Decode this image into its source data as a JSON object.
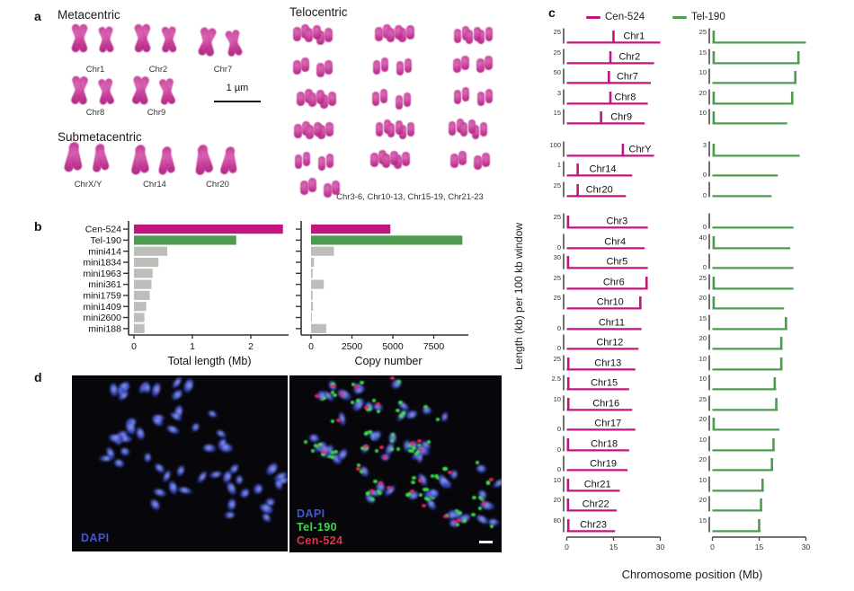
{
  "figure": {
    "panel_letters": {
      "a": "a",
      "b": "b",
      "c": "c",
      "d": "d"
    },
    "colors": {
      "cen": "#C2157E",
      "tel": "#4E9B50",
      "gray": "#BDBDB9",
      "axis": "#333333",
      "dapi_text": "#4355cf",
      "tel_text": "#3fd84a",
      "cen_text": "#e7333d",
      "chromo": "#bf2f8f",
      "dapi_blob": "#3a49c0"
    },
    "panel_a": {
      "label": "a",
      "met_title": "Metacentric",
      "met_row1": [
        "Chr1",
        "Chr2",
        "Chr7"
      ],
      "met_row2": [
        "Chr8",
        "Chr9"
      ],
      "scale_label": "1 µm",
      "sub_title": "Submetacentric",
      "sub_row": [
        "ChrX/Y",
        "Chr14",
        "Chr20"
      ],
      "tel_title": "Telocentric",
      "tel_caption": "Chr3-6, Chr10-13, Chr15-19, Chr21-23"
    },
    "panel_b": {
      "label": "b"
    },
    "panel_c": {
      "label": "c"
    },
    "panel_d": {
      "label": "d",
      "left_labels": [
        "DAPI"
      ],
      "right_labels": [
        "DAPI",
        "Tel-190",
        "Cen-524"
      ]
    }
  },
  "chart_data": [
    {
      "type": "bar",
      "orientation": "horizontal",
      "categories": [
        "Cen-524",
        "Tel-190",
        "mini414",
        "mini1834",
        "mini1963",
        "mini361",
        "mini1759",
        "mini1409",
        "mini2600",
        "mini188"
      ],
      "values": [
        2.55,
        1.75,
        0.57,
        0.42,
        0.32,
        0.3,
        0.27,
        0.21,
        0.18,
        0.18
      ],
      "xlabel": "Total length (Mb)",
      "xticks": [
        0,
        1,
        2
      ],
      "xlim": [
        0,
        2.6
      ],
      "grid": false
    },
    {
      "type": "bar",
      "orientation": "horizontal",
      "categories": [
        "Cen-524",
        "Tel-190",
        "mini414",
        "mini1834",
        "mini1963",
        "mini361",
        "mini1759",
        "mini1409",
        "mini2600",
        "mini188"
      ],
      "values": [
        4850,
        9250,
        1400,
        180,
        100,
        780,
        100,
        120,
        50,
        930
      ],
      "xlabel": "Copy number",
      "xticks": [
        0,
        2500,
        5000,
        7500
      ],
      "xlim": [
        0,
        9600
      ],
      "grid": false
    },
    {
      "type": "line",
      "title": "Cen-524 and Tel-190 density per chromosome",
      "legend": [
        {
          "label": "Cen-524",
          "color": "#C2157E"
        },
        {
          "label": "Tel-190",
          "color": "#4E9B50"
        }
      ],
      "xlabel": "Chromosome position (Mb)",
      "ylabel": "Length (kb) per 100 kb window",
      "xticks": [
        0,
        15,
        30
      ],
      "xlim": [
        0,
        30
      ],
      "rows": [
        {
          "chr": "Chr1",
          "cen": {
            "ymax": "25",
            "len": 30,
            "spikes": [
              15
            ],
            "lf": 0.72
          },
          "tel": {
            "ymax": "25",
            "len": 30,
            "spikes": [
              0.4
            ]
          }
        },
        {
          "chr": "Chr2",
          "cen": {
            "ymax": "25",
            "len": 28,
            "spikes": [
              14
            ],
            "lf": 0.72
          },
          "tel": {
            "ymax": "15",
            "len": 28,
            "spikes": [
              0.4,
              27.6
            ]
          }
        },
        {
          "chr": "Chr7",
          "cen": {
            "ymax": "50",
            "len": 27,
            "spikes": [
              13.5
            ],
            "lf": 0.72
          },
          "tel": {
            "ymax": "10",
            "len": 27,
            "spikes": [
              26.6
            ]
          }
        },
        {
          "chr": "Chr8",
          "cen": {
            "ymax": "3",
            "len": 26,
            "spikes": [
              14
            ],
            "lf": 0.72
          },
          "tel": {
            "ymax": "20",
            "len": 26,
            "spikes": [
              0.4,
              25.6
            ]
          }
        },
        {
          "chr": "Chr9",
          "cen": {
            "ymax": "15",
            "len": 25,
            "spikes": [
              11
            ],
            "lf": 0.7
          },
          "tel": {
            "ymax": "10",
            "len": 24,
            "spikes": [
              0.4
            ]
          }
        },
        {
          "chr": "ChrY",
          "gap": true,
          "cen": {
            "ymax": "100",
            "len": 28,
            "spikes": [
              18
            ],
            "lf": 0.84
          },
          "tel": {
            "ymax": "3",
            "len": 28,
            "spikes": [
              0.4
            ]
          }
        },
        {
          "chr": "Chr14",
          "cen": {
            "ymax": "1",
            "len": 21,
            "spikes": [
              3.5
            ],
            "lf": 0.55
          },
          "tel": {
            "ymax": "0",
            "len": 21,
            "spikes": []
          }
        },
        {
          "chr": "Chr20",
          "cen": {
            "ymax": "25",
            "len": 19,
            "spikes": [
              3.5
            ],
            "lf": 0.55
          },
          "tel": {
            "ymax": "0",
            "len": 19,
            "spikes": []
          }
        },
        {
          "chr": "Chr3",
          "gap": true,
          "cen": {
            "ymax": "25",
            "len": 26,
            "spikes": [
              0.4
            ],
            "lf": 0.62
          },
          "tel": {
            "ymax": "0",
            "len": 26,
            "spikes": []
          }
        },
        {
          "chr": "Chr4",
          "cen": {
            "ymax": "0",
            "len": 25,
            "spikes": [],
            "lf": 0.62
          },
          "tel": {
            "ymax": "40",
            "len": 25,
            "spikes": [
              0.4
            ]
          }
        },
        {
          "chr": "Chr5",
          "cen": {
            "ymax": "30",
            "len": 26,
            "spikes": [
              0.4
            ],
            "lf": 0.62
          },
          "tel": {
            "ymax": "0",
            "len": 26,
            "spikes": []
          }
        },
        {
          "chr": "Chr6",
          "cen": {
            "ymax": "25",
            "len": 26,
            "spikes": [
              25.6
            ],
            "lf": 0.58
          },
          "tel": {
            "ymax": "25",
            "len": 26,
            "spikes": [
              0.4
            ]
          }
        },
        {
          "chr": "Chr10",
          "cen": {
            "ymax": "25",
            "len": 24,
            "spikes": [
              23.6
            ],
            "lf": 0.58
          },
          "tel": {
            "ymax": "20",
            "len": 23,
            "spikes": [
              0.4
            ]
          }
        },
        {
          "chr": "Chr11",
          "cen": {
            "ymax": "0",
            "len": 24,
            "spikes": [],
            "lf": 0.6
          },
          "tel": {
            "ymax": "15",
            "len": 24,
            "spikes": [
              23.6
            ]
          }
        },
        {
          "chr": "Chr12",
          "cen": {
            "ymax": "0",
            "len": 23,
            "spikes": [],
            "lf": 0.6
          },
          "tel": {
            "ymax": "20",
            "len": 22.5,
            "spikes": [
              22.1
            ]
          }
        },
        {
          "chr": "Chr13",
          "cen": {
            "ymax": "25",
            "len": 22,
            "spikes": [
              0.5
            ],
            "lf": 0.6
          },
          "tel": {
            "ymax": "10",
            "len": 22.5,
            "spikes": [
              22.1
            ]
          }
        },
        {
          "chr": "Chr15",
          "cen": {
            "ymax": "2.5",
            "len": 20,
            "spikes": [
              0.5
            ],
            "lf": 0.6
          },
          "tel": {
            "ymax": "10",
            "len": 20.5,
            "spikes": [
              20
            ]
          }
        },
        {
          "chr": "Chr16",
          "cen": {
            "ymax": "10",
            "len": 21,
            "spikes": [
              0.5
            ],
            "lf": 0.6
          },
          "tel": {
            "ymax": "25",
            "len": 21,
            "spikes": [
              20.5
            ]
          }
        },
        {
          "chr": "Chr17",
          "cen": {
            "ymax": "0",
            "len": 22,
            "spikes": [],
            "lf": 0.6
          },
          "tel": {
            "ymax": "20",
            "len": 21.5,
            "spikes": [
              0.4
            ]
          }
        },
        {
          "chr": "Chr18",
          "cen": {
            "ymax": "0",
            "len": 20,
            "spikes": [
              0.4
            ],
            "lf": 0.6
          },
          "tel": {
            "ymax": "10",
            "len": 20,
            "spikes": [
              19.6
            ]
          }
        },
        {
          "chr": "Chr19",
          "cen": {
            "ymax": "0",
            "len": 19.5,
            "spikes": [],
            "lf": 0.6
          },
          "tel": {
            "ymax": "20",
            "len": 19.5,
            "spikes": [
              19.1
            ]
          }
        },
        {
          "chr": "Chr21",
          "cen": {
            "ymax": "10",
            "len": 17,
            "spikes": [
              0.4
            ],
            "lf": 0.58
          },
          "tel": {
            "ymax": "10",
            "len": 16.5,
            "spikes": [
              16.1
            ]
          }
        },
        {
          "chr": "Chr22",
          "cen": {
            "ymax": "20",
            "len": 16,
            "spikes": [
              0.4
            ],
            "lf": 0.58
          },
          "tel": {
            "ymax": "20",
            "len": 16,
            "spikes": [
              15.6
            ]
          }
        },
        {
          "chr": "Chr23",
          "cen": {
            "ymax": "80",
            "len": 15.5,
            "spikes": [
              0.5
            ],
            "lf": 0.55
          },
          "tel": {
            "ymax": "15",
            "len": 15.5,
            "spikes": [
              15
            ]
          }
        }
      ]
    }
  ]
}
